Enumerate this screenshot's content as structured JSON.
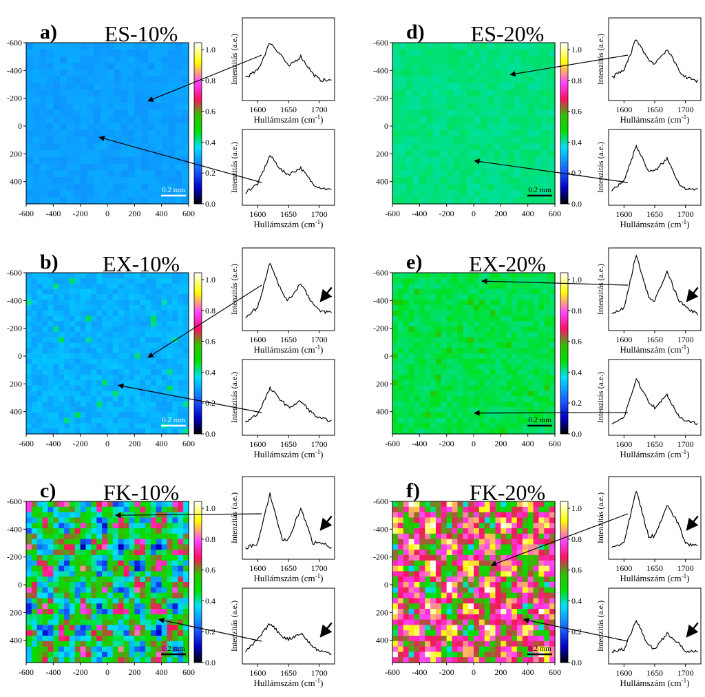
{
  "figure": {
    "colorbar": {
      "ticks": [
        "0.0",
        "0.2",
        "0.4",
        "0.6",
        "0.8",
        "1.0"
      ],
      "stops": [
        "#000000",
        "#0000c8",
        "#1a56ff",
        "#00e0ff",
        "#00e000",
        "#30c000",
        "#ff1060",
        "#ff40ff",
        "#ffff00",
        "#ffffff"
      ]
    },
    "spectrum_xlabel": "Hullámszám (cm",
    "spectrum_xlabel_sup": "-1",
    "spectrum_xlabel_close": ")",
    "spectrum_ylabel": "Intenzitás (a.e.)",
    "map_ticks": [
      "-600",
      "-400",
      "-200",
      "0",
      "200",
      "400",
      "600"
    ],
    "map_y_ticks": [
      "-600",
      "-400",
      "-200",
      "0",
      "200",
      "400"
    ],
    "spec_ticks": [
      "1600",
      "1650",
      "1700"
    ],
    "scalebar_label": "0.2 mm"
  },
  "chart_data": [
    {
      "type": "heatmap",
      "panel": "a)",
      "title": "ES-10%",
      "xlim": [
        -600,
        600
      ],
      "ylim": [
        -600,
        560
      ],
      "colorbar_range": [
        0.0,
        1.0
      ],
      "base_intensity": 0.28,
      "texture": "uniform",
      "spectra": [
        {
          "x": [
            1580,
            1600,
            1620,
            1640,
            1650,
            1670,
            1690,
            1700,
            1720
          ],
          "y": [
            0.25,
            0.35,
            0.75,
            0.55,
            0.4,
            0.55,
            0.3,
            0.22,
            0.2
          ],
          "target_map_point": [
            300,
            -180
          ]
        },
        {
          "x": [
            1580,
            1600,
            1620,
            1640,
            1650,
            1670,
            1690,
            1700,
            1720
          ],
          "y": [
            0.12,
            0.25,
            0.7,
            0.45,
            0.4,
            0.5,
            0.25,
            0.2,
            0.15
          ],
          "target_map_point": [
            -60,
            80
          ]
        }
      ]
    },
    {
      "type": "heatmap",
      "panel": "b)",
      "title": "EX-10%",
      "xlim": [
        -600,
        600
      ],
      "ylim": [
        -600,
        560
      ],
      "colorbar_range": [
        0.0,
        1.0
      ],
      "base_intensity": 0.3,
      "texture": "spots",
      "spectra": [
        {
          "x": [
            1580,
            1600,
            1620,
            1640,
            1650,
            1670,
            1690,
            1700,
            1720
          ],
          "y": [
            0.12,
            0.25,
            0.9,
            0.45,
            0.35,
            0.6,
            0.3,
            0.2,
            0.18
          ],
          "target_map_point": [
            300,
            10
          ],
          "marked_peak": 1700
        },
        {
          "x": [
            1580,
            1600,
            1620,
            1640,
            1650,
            1670,
            1690,
            1700,
            1720
          ],
          "y": [
            0.12,
            0.25,
            0.65,
            0.45,
            0.35,
            0.45,
            0.25,
            0.18,
            0.14
          ],
          "target_map_point": [
            80,
            210
          ]
        }
      ]
    },
    {
      "type": "heatmap",
      "panel": "c)",
      "title": "FK-10%",
      "xlim": [
        -600,
        600
      ],
      "ylim": [
        -600,
        560
      ],
      "colorbar_range": [
        0.0,
        1.0
      ],
      "base_intensity": 0.45,
      "texture": "patchy",
      "spectra": [
        {
          "x": [
            1580,
            1600,
            1620,
            1640,
            1650,
            1670,
            1690,
            1700,
            1720
          ],
          "y": [
            0.08,
            0.15,
            0.85,
            0.2,
            0.2,
            0.65,
            0.15,
            0.18,
            0.08
          ],
          "target_map_point": [
            60,
            -500
          ],
          "marked_peak": 1700
        },
        {
          "x": [
            1580,
            1600,
            1620,
            1640,
            1650,
            1670,
            1690,
            1700,
            1720
          ],
          "y": [
            0.1,
            0.3,
            0.55,
            0.35,
            0.3,
            0.4,
            0.18,
            0.12,
            0.08
          ],
          "target_map_point": [
            380,
            250
          ],
          "marked_peak": 1700
        }
      ]
    },
    {
      "type": "heatmap",
      "panel": "d)",
      "title": "ES-20%",
      "xlim": [
        -600,
        600
      ],
      "ylim": [
        -600,
        560
      ],
      "colorbar_range": [
        0.0,
        1.0
      ],
      "base_intensity": 0.4,
      "texture": "uniform",
      "spectra": [
        {
          "x": [
            1580,
            1600,
            1620,
            1640,
            1650,
            1670,
            1690,
            1700,
            1720
          ],
          "y": [
            0.25,
            0.35,
            0.8,
            0.5,
            0.45,
            0.65,
            0.35,
            0.25,
            0.2
          ],
          "target_map_point": [
            270,
            -370
          ]
        },
        {
          "x": [
            1580,
            1600,
            1620,
            1640,
            1650,
            1670,
            1690,
            1700,
            1720
          ],
          "y": [
            0.15,
            0.3,
            0.85,
            0.45,
            0.45,
            0.65,
            0.25,
            0.18,
            0.15
          ],
          "target_map_point": [
            5,
            250
          ]
        }
      ]
    },
    {
      "type": "heatmap",
      "panel": "e)",
      "title": "EX-20%",
      "xlim": [
        -600,
        600
      ],
      "ylim": [
        -600,
        560
      ],
      "colorbar_range": [
        0.0,
        1.0
      ],
      "base_intensity": 0.42,
      "texture": "spots",
      "spectra": [
        {
          "x": [
            1580,
            1600,
            1620,
            1640,
            1650,
            1670,
            1690,
            1700,
            1720
          ],
          "y": [
            0.15,
            0.25,
            1.0,
            0.4,
            0.35,
            0.75,
            0.35,
            0.25,
            0.15
          ],
          "target_map_point": [
            60,
            -540
          ],
          "marked_peak": 1700
        },
        {
          "x": [
            1580,
            1600,
            1620,
            1640,
            1650,
            1670,
            1690,
            1700,
            1720
          ],
          "y": [
            0.1,
            0.2,
            0.8,
            0.45,
            0.35,
            0.55,
            0.2,
            0.15,
            0.1
          ],
          "target_map_point": [
            5,
            410
          ]
        }
      ]
    },
    {
      "type": "heatmap",
      "panel": "f)",
      "title": "FK-20%",
      "xlim": [
        -600,
        600
      ],
      "ylim": [
        -600,
        560
      ],
      "colorbar_range": [
        0.0,
        1.0
      ],
      "base_intensity": 0.68,
      "texture": "patchy",
      "spectra": [
        {
          "x": [
            1580,
            1600,
            1620,
            1640,
            1650,
            1670,
            1690,
            1700,
            1720
          ],
          "y": [
            0.1,
            0.15,
            0.9,
            0.25,
            0.25,
            0.7,
            0.4,
            0.15,
            0.1
          ],
          "target_map_point": [
            130,
            -140
          ],
          "marked_peak": 1700
        },
        {
          "x": [
            1580,
            1600,
            1620,
            1640,
            1650,
            1670,
            1690,
            1700,
            1720
          ],
          "y": [
            0.1,
            0.15,
            0.6,
            0.2,
            0.15,
            0.4,
            0.22,
            0.12,
            0.1
          ],
          "target_map_point": [
            370,
            250
          ],
          "marked_peak": 1700
        }
      ]
    }
  ]
}
